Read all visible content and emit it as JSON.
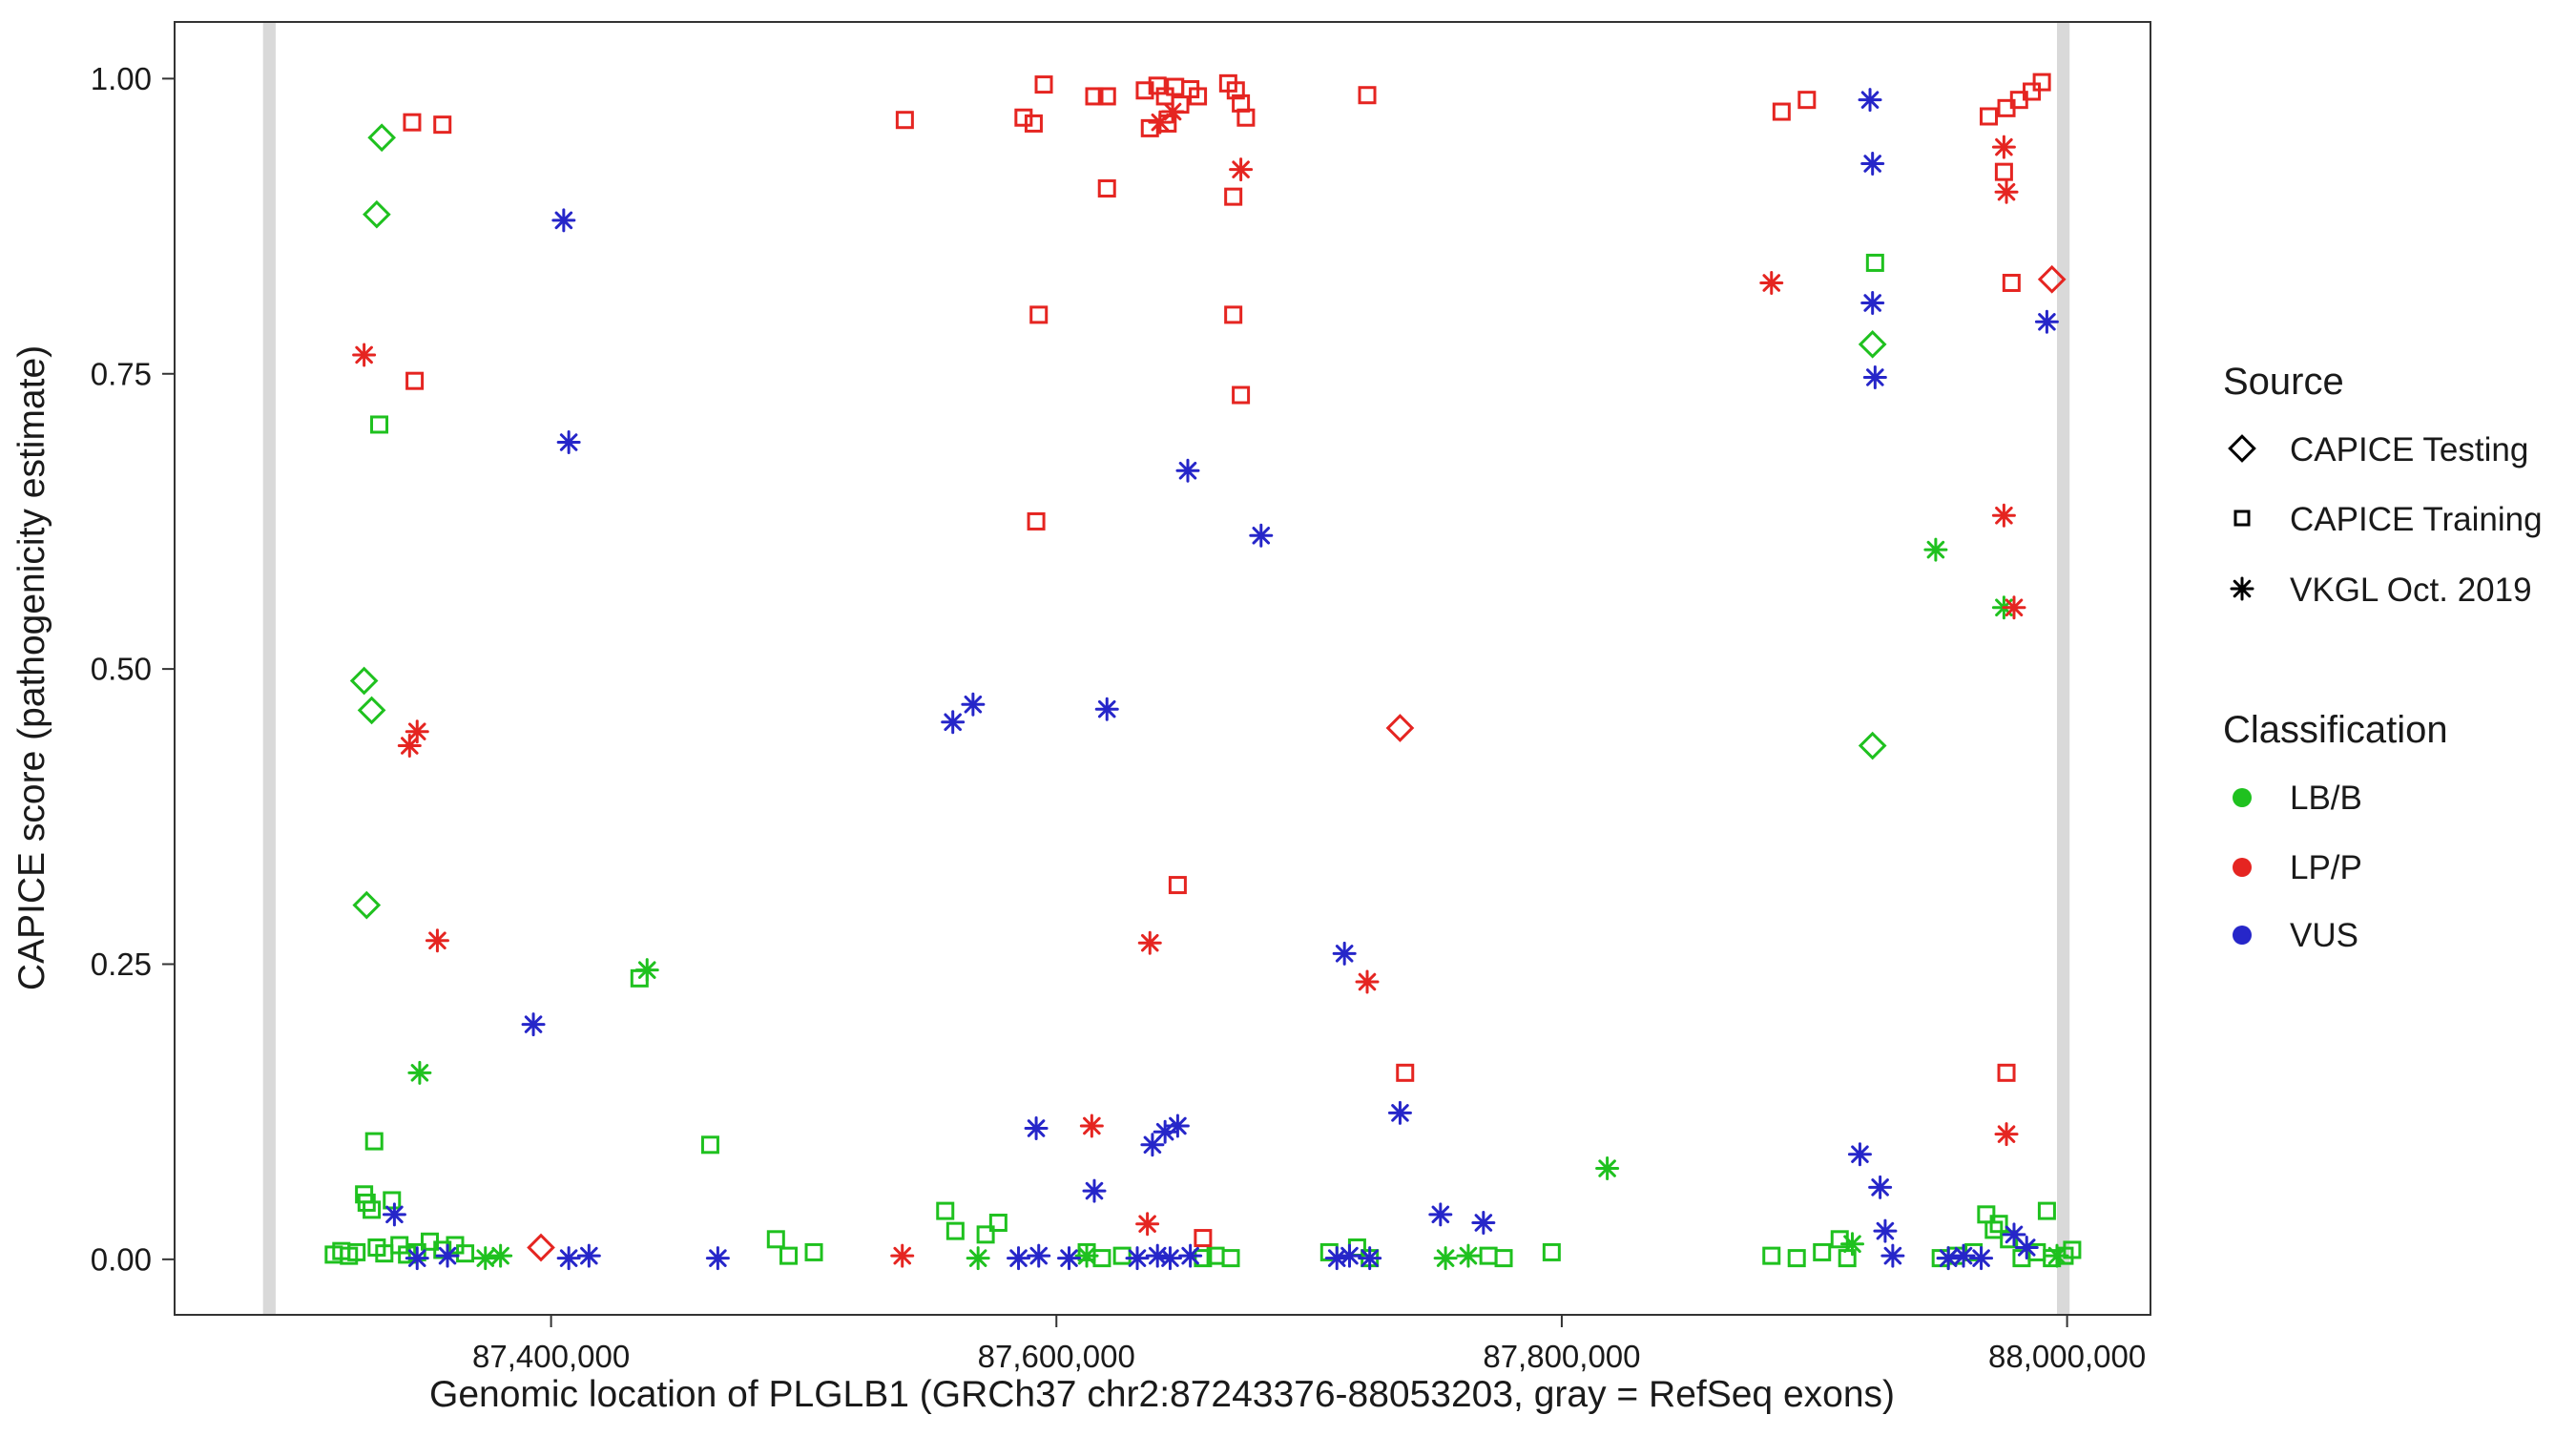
{
  "chart_data": {
    "type": "scatter",
    "xlabel": "Genomic location of PLGLB1 (GRCh37 chr2:87243376-88053203, gray = RefSeq exons)",
    "ylabel": "CAPICE score (pathogenicity estimate)",
    "xlim": [
      87251000,
      88033000
    ],
    "ylim": [
      -0.047,
      1.048
    ],
    "grid": false,
    "legend_position": "right",
    "x_ticks": [
      {
        "value": 87400000,
        "label": "87,400,000"
      },
      {
        "value": 87600000,
        "label": "87,600,000"
      },
      {
        "value": 87800000,
        "label": "87,800,000"
      },
      {
        "value": 88000000,
        "label": "88,000,000"
      }
    ],
    "y_ticks": [
      {
        "value": 0.0,
        "label": "0.00"
      },
      {
        "value": 0.25,
        "label": "0.25"
      },
      {
        "value": 0.5,
        "label": "0.50"
      },
      {
        "value": 0.75,
        "label": "0.75"
      },
      {
        "value": 1.0,
        "label": "1.00"
      }
    ],
    "colors": {
      "lbb": "#1fc11f",
      "lpp": "#e52521",
      "vus": "#2626c9",
      "exon_band": "#d9d9d9",
      "axis": "#333333"
    },
    "exon_bands": [
      {
        "start": 87286000,
        "end": 87291000
      },
      {
        "start": 87996000,
        "end": 88001000
      }
    ],
    "legend": {
      "source": {
        "title": "Source",
        "items": [
          {
            "label": "CAPICE Testing",
            "marker": "diamond"
          },
          {
            "label": "CAPICE Training",
            "marker": "square"
          },
          {
            "label": "VKGL Oct. 2019",
            "marker": "asterisk"
          }
        ]
      },
      "classification": {
        "title": "Classification",
        "items": [
          {
            "label": "LB/B",
            "color_key": "lbb"
          },
          {
            "label": "LP/P",
            "color_key": "lpp"
          },
          {
            "label": "VUS",
            "color_key": "vus"
          }
        ]
      }
    },
    "series": [
      {
        "name": "capice-testing-lbb",
        "source": "CAPICE Testing",
        "classification": "LB/B",
        "marker": "diamond",
        "color_key": "lbb",
        "points": [
          [
            87333000,
            0.95
          ],
          [
            87331000,
            0.885
          ],
          [
            87326000,
            0.49
          ],
          [
            87329000,
            0.465
          ],
          [
            87327000,
            0.3
          ],
          [
            87923000,
            0.775
          ],
          [
            87923000,
            0.435
          ]
        ]
      },
      {
        "name": "capice-testing-lpp",
        "source": "CAPICE Testing",
        "classification": "LP/P",
        "marker": "diamond",
        "color_key": "lpp",
        "points": [
          [
            87736000,
            0.45
          ],
          [
            87994000,
            0.83
          ],
          [
            87396000,
            0.01
          ]
        ]
      },
      {
        "name": "capice-training-lbb",
        "source": "CAPICE Training",
        "classification": "LB/B",
        "marker": "square",
        "color_key": "lbb",
        "points": [
          [
            87314000,
            0.004
          ],
          [
            87317000,
            0.007
          ],
          [
            87320000,
            0.003
          ],
          [
            87323000,
            0.006
          ],
          [
            87326000,
            0.055
          ],
          [
            87327000,
            0.048
          ],
          [
            87329000,
            0.042
          ],
          [
            87330000,
            0.1
          ],
          [
            87331000,
            0.01
          ],
          [
            87334000,
            0.005
          ],
          [
            87337000,
            0.05
          ],
          [
            87340000,
            0.012
          ],
          [
            87343000,
            0.004
          ],
          [
            87347000,
            0.006
          ],
          [
            87352000,
            0.015
          ],
          [
            87357000,
            0.008
          ],
          [
            87362000,
            0.012
          ],
          [
            87366000,
            0.005
          ],
          [
            87332000,
            0.707
          ],
          [
            87435000,
            0.238
          ],
          [
            87463000,
            0.097
          ],
          [
            87489000,
            0.017
          ],
          [
            87494000,
            0.003
          ],
          [
            87504000,
            0.006
          ],
          [
            87556000,
            0.041
          ],
          [
            87560000,
            0.024
          ],
          [
            87572000,
            0.021
          ],
          [
            87577000,
            0.031
          ],
          [
            87612000,
            0.006
          ],
          [
            87618000,
            0.001
          ],
          [
            87626000,
            0.003
          ],
          [
            87658000,
            0.001
          ],
          [
            87663000,
            0.003
          ],
          [
            87669000,
            0.001
          ],
          [
            87708000,
            0.006
          ],
          [
            87719000,
            0.01
          ],
          [
            87724000,
            0.001
          ],
          [
            87771000,
            0.003
          ],
          [
            87777000,
            0.001
          ],
          [
            87796000,
            0.006
          ],
          [
            87883000,
            0.003
          ],
          [
            87893000,
            0.001
          ],
          [
            87903000,
            0.006
          ],
          [
            87910000,
            0.017
          ],
          [
            87913000,
            0.001
          ],
          [
            87924000,
            0.844
          ],
          [
            87950000,
            0.001
          ],
          [
            87956000,
            0.003
          ],
          [
            87963000,
            0.006
          ],
          [
            87968000,
            0.038
          ],
          [
            87971000,
            0.025
          ],
          [
            87973000,
            0.03
          ],
          [
            87977000,
            0.017
          ],
          [
            87982000,
            0.001
          ],
          [
            87988000,
            0.006
          ],
          [
            87992000,
            0.041
          ],
          [
            87994000,
            0.001
          ],
          [
            87999000,
            0.003
          ],
          [
            88002000,
            0.008
          ]
        ]
      },
      {
        "name": "capice-training-lpp",
        "source": "CAPICE Training",
        "classification": "LP/P",
        "marker": "square",
        "color_key": "lpp",
        "points": [
          [
            87345000,
            0.963
          ],
          [
            87357000,
            0.961
          ],
          [
            87346000,
            0.744
          ],
          [
            87540000,
            0.965
          ],
          [
            87587000,
            0.967
          ],
          [
            87591000,
            0.962
          ],
          [
            87595000,
            0.995
          ],
          [
            87615000,
            0.985
          ],
          [
            87620000,
            0.985
          ],
          [
            87620000,
            0.907
          ],
          [
            87593000,
            0.8
          ],
          [
            87592000,
            0.625
          ],
          [
            87635000,
            0.99
          ],
          [
            87640000,
            0.994
          ],
          [
            87643000,
            0.985
          ],
          [
            87647000,
            0.993
          ],
          [
            87649000,
            0.978
          ],
          [
            87644000,
            0.962
          ],
          [
            87637000,
            0.958
          ],
          [
            87653000,
            0.991
          ],
          [
            87656000,
            0.985
          ],
          [
            87668000,
            0.996
          ],
          [
            87671000,
            0.99
          ],
          [
            87673000,
            0.979
          ],
          [
            87675000,
            0.967
          ],
          [
            87670000,
            0.9
          ],
          [
            87670000,
            0.8
          ],
          [
            87673000,
            0.732
          ],
          [
            87648000,
            0.317
          ],
          [
            87723000,
            0.986
          ],
          [
            87738000,
            0.158
          ],
          [
            87658000,
            0.018
          ],
          [
            87887000,
            0.972
          ],
          [
            87897000,
            0.982
          ],
          [
            87969000,
            0.968
          ],
          [
            87976000,
            0.975
          ],
          [
            87981000,
            0.982
          ],
          [
            87986000,
            0.989
          ],
          [
            87990000,
            0.997
          ],
          [
            87975000,
            0.921
          ],
          [
            87978000,
            0.827
          ],
          [
            87976000,
            0.158
          ]
        ]
      },
      {
        "name": "vkgl-lbb",
        "source": "VKGL Oct. 2019",
        "classification": "LB/B",
        "marker": "asterisk",
        "color_key": "lbb",
        "points": [
          [
            87348000,
            0.158
          ],
          [
            87374000,
            0.001
          ],
          [
            87380000,
            0.003
          ],
          [
            87438000,
            0.245
          ],
          [
            87569000,
            0.001
          ],
          [
            87612000,
            0.003
          ],
          [
            87754000,
            0.001
          ],
          [
            87763000,
            0.003
          ],
          [
            87818000,
            0.077
          ],
          [
            87915000,
            0.013
          ],
          [
            87948000,
            0.601
          ],
          [
            87975000,
            0.552
          ],
          [
            87953000,
            0.001
          ],
          [
            87996000,
            0.003
          ]
        ]
      },
      {
        "name": "vkgl-lpp",
        "source": "VKGL Oct. 2019",
        "classification": "LP/P",
        "marker": "asterisk",
        "color_key": "lpp",
        "points": [
          [
            87326000,
            0.766
          ],
          [
            87347000,
            0.447
          ],
          [
            87344000,
            0.435
          ],
          [
            87355000,
            0.27
          ],
          [
            87539000,
            0.003
          ],
          [
            87641000,
            0.963
          ],
          [
            87646000,
            0.972
          ],
          [
            87673000,
            0.923
          ],
          [
            87637000,
            0.268
          ],
          [
            87614000,
            0.113
          ],
          [
            87636000,
            0.03
          ],
          [
            87723000,
            0.235
          ],
          [
            87883000,
            0.827
          ],
          [
            87975000,
            0.942
          ],
          [
            87976000,
            0.904
          ],
          [
            87975000,
            0.63
          ],
          [
            87979000,
            0.552
          ],
          [
            87976000,
            0.106
          ]
        ]
      },
      {
        "name": "vkgl-vus",
        "source": "VKGL Oct. 2019",
        "classification": "VUS",
        "marker": "asterisk",
        "color_key": "vus",
        "points": [
          [
            87405000,
            0.88
          ],
          [
            87407000,
            0.692
          ],
          [
            87393000,
            0.199
          ],
          [
            87338000,
            0.038
          ],
          [
            87347000,
            0.001
          ],
          [
            87359000,
            0.003
          ],
          [
            87407000,
            0.001
          ],
          [
            87415000,
            0.003
          ],
          [
            87466000,
            0.001
          ],
          [
            87559000,
            0.455
          ],
          [
            87567000,
            0.47
          ],
          [
            87620000,
            0.466
          ],
          [
            87652000,
            0.668
          ],
          [
            87681000,
            0.613
          ],
          [
            87592000,
            0.111
          ],
          [
            87615000,
            0.058
          ],
          [
            87638000,
            0.097
          ],
          [
            87643000,
            0.108
          ],
          [
            87648000,
            0.113
          ],
          [
            87585000,
            0.001
          ],
          [
            87593000,
            0.003
          ],
          [
            87605000,
            0.001
          ],
          [
            87632000,
            0.001
          ],
          [
            87640000,
            0.003
          ],
          [
            87645000,
            0.001
          ],
          [
            87653000,
            0.003
          ],
          [
            87714000,
            0.259
          ],
          [
            87736000,
            0.124
          ],
          [
            87752000,
            0.038
          ],
          [
            87769000,
            0.031
          ],
          [
            87711000,
            0.001
          ],
          [
            87716000,
            0.003
          ],
          [
            87724000,
            0.001
          ],
          [
            87922000,
            0.982
          ],
          [
            87923000,
            0.928
          ],
          [
            87923000,
            0.81
          ],
          [
            87924000,
            0.747
          ],
          [
            87918000,
            0.089
          ],
          [
            87926000,
            0.061
          ],
          [
            87928000,
            0.024
          ],
          [
            87931000,
            0.003
          ],
          [
            87992000,
            0.794
          ],
          [
            87979000,
            0.021
          ],
          [
            87984000,
            0.01
          ],
          [
            87953000,
            0.001
          ],
          [
            87959000,
            0.003
          ],
          [
            87966000,
            0.001
          ]
        ]
      }
    ]
  }
}
